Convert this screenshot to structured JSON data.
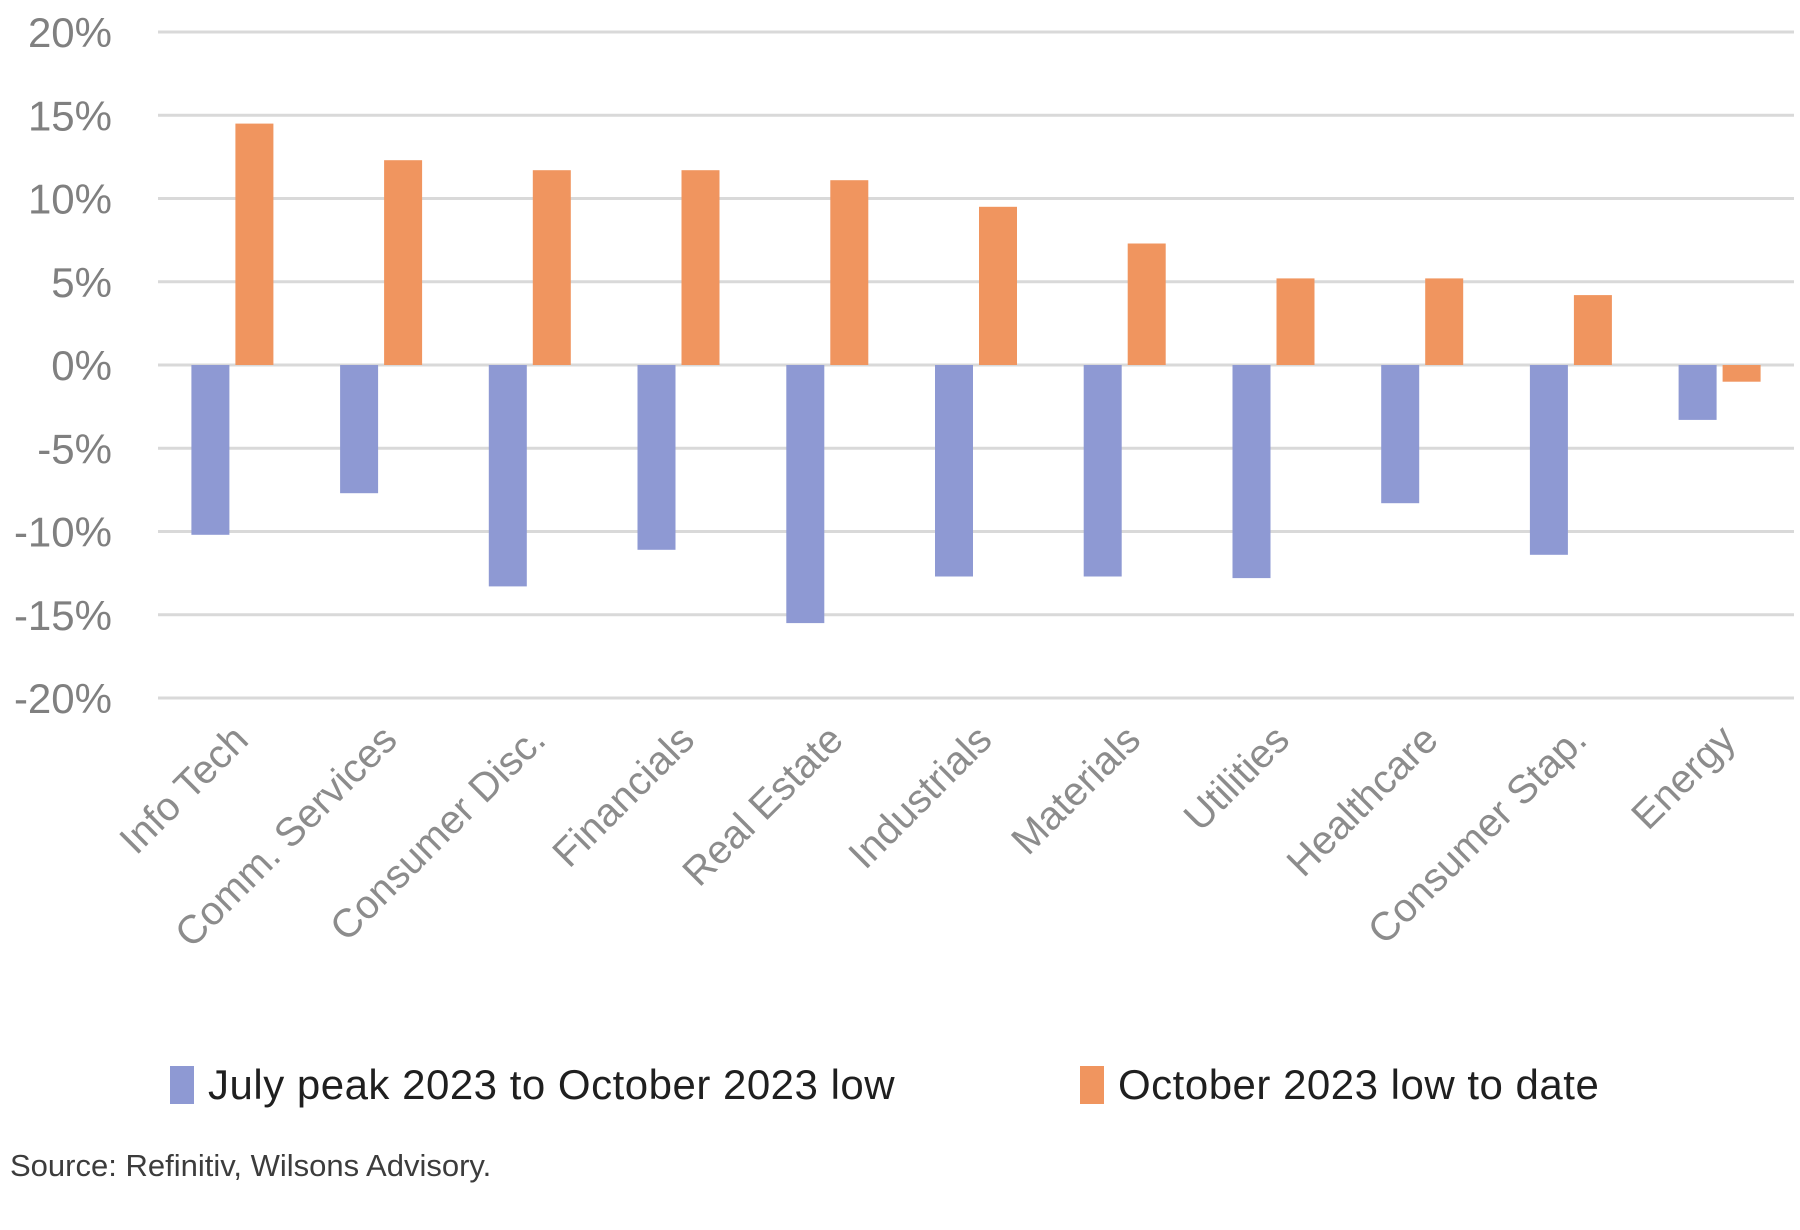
{
  "chart_data": {
    "type": "bar",
    "title": "",
    "xlabel": "",
    "ylabel": "",
    "categories": [
      "Info Tech",
      "Comm. Services",
      "Consumer Disc.",
      "Financials",
      "Real Estate",
      "Industrials",
      "Materials",
      "Utilities",
      "Healthcare",
      "Consumer Stap.",
      "Energy"
    ],
    "series": [
      {
        "name": "July peak 2023 to October 2023 low",
        "color": "#8E99D3",
        "values": [
          -10.2,
          -7.7,
          -13.3,
          -11.1,
          -15.5,
          -12.7,
          -12.7,
          -12.8,
          -8.3,
          -11.4,
          -3.3
        ]
      },
      {
        "name": "October 2023 low to date",
        "color": "#F0955F",
        "values": [
          14.5,
          12.3,
          11.7,
          11.7,
          11.1,
          9.5,
          7.3,
          5.2,
          5.2,
          4.2,
          -1.0
        ]
      }
    ],
    "ylim": [
      -20,
      20
    ],
    "ytick_step": 5,
    "ytick_labels": [
      "20%",
      "15%",
      "10%",
      "5%",
      "0%",
      "-5%",
      "-10%",
      "-15%",
      "-20%"
    ],
    "grid": "horizontal",
    "legend_position": "bottom"
  },
  "colors": {
    "gridline": "#D9D9D9",
    "axis_tick_label": "#808080",
    "category_label": "#8C8C8C",
    "legend_text": "#1F1F1F",
    "source_text": "#3C3C3C",
    "background": "#FFFFFF"
  },
  "source_note": "Source: Refinitiv, Wilsons Advisory."
}
